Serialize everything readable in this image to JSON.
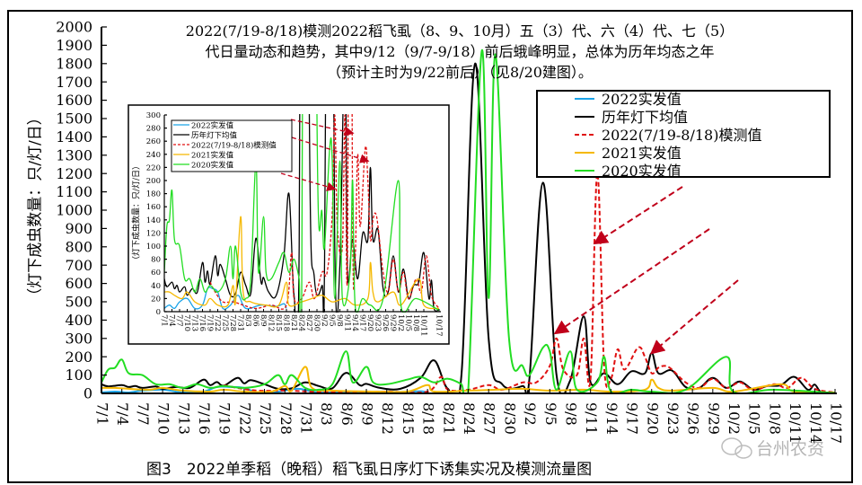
{
  "chart_data": [
    {
      "type": "line",
      "title_lines": [
        "2022(7/19-8/18)模测2022稻飞虱（8、9、10月）五（3）代、六（4）代、七（5）",
        "代日量动态和趋势，其中9/12（9/7-9/18）前后蛾峰明显，总体为历年均态之年",
        "（预计主时为9/22前后）（见8/20建图）。"
      ],
      "ylabel": "（灯下成虫数量：只/灯/日）",
      "xlabel": "",
      "ylim": [
        0,
        2000
      ],
      "yticks": [
        0,
        100,
        200,
        300,
        400,
        500,
        600,
        700,
        800,
        900,
        1000,
        1100,
        1200,
        1300,
        1400,
        1500,
        1600,
        1700,
        1800,
        1900,
        2000
      ],
      "xlim": [
        "7/1",
        "10/17"
      ],
      "xticks": [
        "7/1",
        "7/4",
        "7/7",
        "7/10",
        "7/13",
        "7/16",
        "7/19",
        "7/22",
        "7/25",
        "7/28",
        "7/31",
        "8/3",
        "8/6",
        "8/9",
        "8/12",
        "8/15",
        "8/18",
        "8/21",
        "8/24",
        "8/27",
        "8/30",
        "9/2",
        "9/5",
        "9/8",
        "9/11",
        "9/14",
        "9/17",
        "9/20",
        "9/23",
        "9/26",
        "9/29",
        "10/2",
        "10/5",
        "10/8",
        "10/11",
        "10/14",
        "10/17"
      ],
      "grid": false,
      "legend_position": "top-right",
      "series": [
        {
          "name": "2022实发值",
          "color": "#1aa3e8",
          "dash": false,
          "points": [
            [
              "7/1",
              5
            ],
            [
              "7/3",
              10
            ],
            [
              "7/5",
              5
            ],
            [
              "7/7",
              15
            ],
            [
              "7/10",
              20
            ],
            [
              "7/13",
              5
            ],
            [
              "7/16",
              10
            ],
            [
              "7/18",
              35
            ],
            [
              "7/20",
              35
            ],
            [
              "7/22",
              30
            ],
            [
              "7/24",
              5
            ],
            [
              "7/27",
              10
            ],
            [
              "7/30",
              25
            ],
            [
              "8/2",
              5
            ],
            [
              "8/8",
              10
            ],
            [
              "8/14",
              8
            ],
            [
              "8/17",
              12
            ],
            [
              "8/18",
              5
            ]
          ]
        },
        {
          "name": "历年灯下均值",
          "color": "#000000",
          "dash": false,
          "points": [
            [
              "7/1",
              50
            ],
            [
              "7/2",
              38
            ],
            [
              "7/4",
              45
            ],
            [
              "7/5",
              35
            ],
            [
              "7/6",
              40
            ],
            [
              "7/7",
              30
            ],
            [
              "7/9",
              38
            ],
            [
              "7/10",
              25
            ],
            [
              "7/12",
              35
            ],
            [
              "7/14",
              30
            ],
            [
              "7/16",
              75
            ],
            [
              "7/17",
              45
            ],
            [
              "7/18",
              62
            ],
            [
              "7/19",
              42
            ],
            [
              "7/21",
              85
            ],
            [
              "7/22",
              55
            ],
            [
              "7/23",
              72
            ],
            [
              "7/25",
              50
            ],
            [
              "7/27",
              25
            ],
            [
              "7/29",
              28
            ],
            [
              "7/31",
              60
            ],
            [
              "8/2",
              40
            ],
            [
              "8/4",
              28
            ],
            [
              "8/6",
              112
            ],
            [
              "8/8",
              45
            ],
            [
              "8/9",
              52
            ],
            [
              "8/11",
              30
            ],
            [
              "8/14",
              25
            ],
            [
              "8/17",
              85
            ],
            [
              "8/19",
              180
            ],
            [
              "8/21",
              25
            ],
            [
              "8/23",
              100
            ],
            [
              "8/25",
              1800
            ],
            [
              "8/27",
              300
            ],
            [
              "8/29",
              50
            ],
            [
              "9/1",
              40
            ],
            [
              "9/2",
              80
            ],
            [
              "9/4",
              1150
            ],
            [
              "9/6",
              100
            ],
            [
              "9/8",
              70
            ],
            [
              "9/10",
              420
            ],
            [
              "9/11",
              60
            ],
            [
              "9/13",
              110
            ],
            [
              "9/15",
              50
            ],
            [
              "9/17",
              120
            ],
            [
              "9/19",
              110
            ],
            [
              "9/20",
              220
            ],
            [
              "9/21",
              110
            ],
            [
              "9/23",
              125
            ],
            [
              "9/25",
              35
            ],
            [
              "9/27",
              30
            ],
            [
              "9/29",
              85
            ],
            [
              "10/1",
              30
            ],
            [
              "10/3",
              65
            ],
            [
              "10/5",
              20
            ],
            [
              "10/7",
              40
            ],
            [
              "10/9",
              45
            ],
            [
              "10/11",
              90
            ],
            [
              "10/13",
              20
            ],
            [
              "10/14",
              48
            ],
            [
              "10/15",
              5
            ],
            [
              "10/17",
              3
            ]
          ]
        },
        {
          "name": "2022(7/19-8/18)模测值",
          "color": "#e01010",
          "dash": true,
          "points": [
            [
              "7/19",
              45
            ],
            [
              "7/21",
              30
            ],
            [
              "7/24",
              15
            ],
            [
              "7/28",
              15
            ],
            [
              "8/1",
              10
            ],
            [
              "8/6",
              5
            ],
            [
              "8/12",
              10
            ],
            [
              "8/18",
              10
            ],
            [
              "8/20",
              90
            ],
            [
              "8/21",
              20
            ],
            [
              "8/24",
              20
            ],
            [
              "8/27",
              45
            ],
            [
              "8/29",
              20
            ],
            [
              "9/1",
              60
            ],
            [
              "9/3",
              60
            ],
            [
              "9/5",
              150
            ],
            [
              "9/6",
              300
            ],
            [
              "9/7",
              130
            ],
            [
              "9/9",
              100
            ],
            [
              "9/10",
              300
            ],
            [
              "9/11",
              80
            ],
            [
              "9/12",
              1200
            ],
            [
              "9/13",
              150
            ],
            [
              "9/14",
              80
            ],
            [
              "9/15",
              240
            ],
            [
              "9/16",
              130
            ],
            [
              "9/18",
              250
            ],
            [
              "9/19",
              200
            ],
            [
              "9/20",
              110
            ],
            [
              "9/21",
              140
            ],
            [
              "9/22",
              150
            ],
            [
              "9/23",
              130
            ],
            [
              "9/25",
              60
            ],
            [
              "9/27",
              30
            ],
            [
              "9/29",
              80
            ],
            [
              "10/1",
              30
            ],
            [
              "10/3",
              60
            ],
            [
              "10/5",
              20
            ],
            [
              "10/8",
              50
            ],
            [
              "10/10",
              30
            ],
            [
              "10/12",
              85
            ],
            [
              "10/14",
              25
            ],
            [
              "10/17",
              5
            ]
          ]
        },
        {
          "name": "2021实发值",
          "color": "#f5b800",
          "dash": false,
          "points": [
            [
              "7/1",
              30
            ],
            [
              "7/3",
              30
            ],
            [
              "7/5",
              25
            ],
            [
              "7/8",
              20
            ],
            [
              "7/10",
              30
            ],
            [
              "7/13",
              15
            ],
            [
              "7/17",
              10
            ],
            [
              "7/19",
              20
            ],
            [
              "7/22",
              10
            ],
            [
              "7/26",
              10
            ],
            [
              "7/28",
              40
            ],
            [
              "7/29",
              15
            ],
            [
              "7/31",
              145
            ],
            [
              "8/1",
              30
            ],
            [
              "8/4",
              15
            ],
            [
              "8/10",
              10
            ],
            [
              "8/15",
              10
            ],
            [
              "8/18",
              45
            ],
            [
              "8/19",
              10
            ],
            [
              "8/24",
              15
            ],
            [
              "8/28",
              20
            ],
            [
              "9/1",
              25
            ],
            [
              "9/5",
              15
            ],
            [
              "9/10",
              20
            ],
            [
              "9/14",
              10
            ],
            [
              "9/19",
              20
            ],
            [
              "9/20",
              75
            ],
            [
              "9/21",
              30
            ],
            [
              "9/23",
              15
            ],
            [
              "9/29",
              30
            ],
            [
              "10/2",
              10
            ],
            [
              "10/9",
              50
            ],
            [
              "10/11",
              10
            ],
            [
              "10/17",
              5
            ]
          ]
        },
        {
          "name": "2020实发值",
          "color": "#22dd22",
          "dash": false,
          "points": [
            [
              "7/1",
              60
            ],
            [
              "7/2",
              130
            ],
            [
              "7/3",
              140
            ],
            [
              "7/4",
              185
            ],
            [
              "7/5",
              110
            ],
            [
              "7/7",
              100
            ],
            [
              "7/9",
              50
            ],
            [
              "7/11",
              50
            ],
            [
              "7/13",
              30
            ],
            [
              "7/15",
              50
            ],
            [
              "7/17",
              30
            ],
            [
              "7/19",
              40
            ],
            [
              "7/22",
              30
            ],
            [
              "7/25",
              50
            ],
            [
              "7/27",
              100
            ],
            [
              "7/28",
              50
            ],
            [
              "7/29",
              100
            ],
            [
              "7/31",
              30
            ],
            [
              "8/2",
              20
            ],
            [
              "8/4",
              50
            ],
            [
              "8/6",
              230
            ],
            [
              "8/7",
              60
            ],
            [
              "8/9",
              145
            ],
            [
              "8/10",
              60
            ],
            [
              "8/12",
              50
            ],
            [
              "8/15",
              75
            ],
            [
              "8/17",
              90
            ],
            [
              "8/19",
              60
            ],
            [
              "8/21",
              80
            ],
            [
              "8/23",
              50
            ],
            [
              "8/24",
              20
            ],
            [
              "8/26",
              1870
            ],
            [
              "8/27",
              520
            ],
            [
              "8/28",
              1850
            ],
            [
              "8/30",
              300
            ],
            [
              "9/1",
              150
            ],
            [
              "9/2",
              100
            ],
            [
              "9/4",
              250
            ],
            [
              "9/5",
              230
            ],
            [
              "9/6",
              20
            ],
            [
              "9/8",
              230
            ],
            [
              "9/9",
              20
            ],
            [
              "9/12",
              60
            ],
            [
              "9/13",
              200
            ],
            [
              "9/14",
              10
            ],
            [
              "9/17",
              20
            ],
            [
              "9/20",
              10
            ],
            [
              "9/25",
              20
            ],
            [
              "10/1",
              200
            ],
            [
              "10/2",
              10
            ],
            [
              "10/8",
              20
            ],
            [
              "10/17",
              2
            ]
          ]
        }
      ]
    },
    {
      "type": "line",
      "inset": true,
      "ylabel": "（灯下成虫数量：只/灯/日）",
      "ylim": [
        0,
        300
      ],
      "yticks": [
        0,
        20,
        40,
        60,
        80,
        100,
        120,
        140,
        160,
        180,
        200,
        220,
        240,
        260,
        280,
        300
      ],
      "xticks": [
        "7/1",
        "7/4",
        "7/7",
        "7/10",
        "7/13",
        "7/16",
        "7/19",
        "7/22",
        "7/25",
        "7/28",
        "7/31",
        "8/3",
        "8/6",
        "8/9",
        "8/12",
        "8/15",
        "8/18",
        "8/21",
        "8/24",
        "8/27",
        "8/30",
        "9/2",
        "9/5",
        "9/8",
        "9/11",
        "9/14",
        "9/17",
        "9/20",
        "9/23",
        "9/26",
        "9/29",
        "10/2",
        "10/5",
        "10/8",
        "10/11",
        "10/17"
      ],
      "legend_position": "top-left",
      "series_ref": "same data as main chart"
    }
  ],
  "caption": "图3　2022单季稻（晚稻）稻飞虱日序灯下诱集实况及模测流量图",
  "watermark": "台州农资"
}
